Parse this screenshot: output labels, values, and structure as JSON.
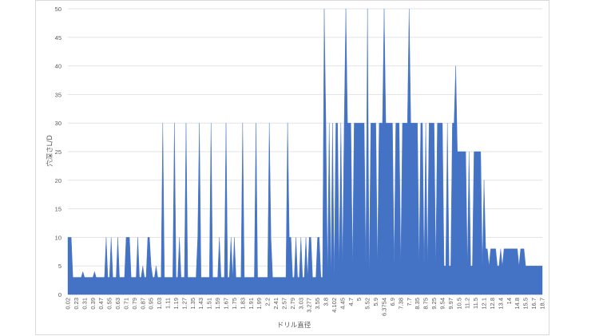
{
  "chart_data": {
    "type": "area",
    "title": "",
    "xlabel": "ドリル直径",
    "ylabel": "穴深さL/D",
    "ylim": [
      0,
      50
    ],
    "yticks": [
      0,
      5,
      10,
      15,
      20,
      25,
      30,
      35,
      40,
      45,
      50
    ],
    "grid": true,
    "legend": "none",
    "series_color": "#4472C4",
    "x_tick_labels": [
      "0.02",
      "0.23",
      "0.31",
      "0.39",
      "0.47",
      "0.55",
      "0.63",
      "0.71",
      "0.79",
      "0.87",
      "0.95",
      "1.03",
      "1.11",
      "1.19",
      "1.27",
      "1.35",
      "1.43",
      "1.51",
      "1.59",
      "1.67",
      "1.75",
      "1.83",
      "1.91",
      "1.99",
      "2.2",
      "2.41",
      "2.57",
      "2.79",
      "3.03",
      "3.277",
      "3.55",
      "3.8",
      "4.102",
      "4.45",
      "4.7",
      "5",
      "5.52",
      "5.9",
      "6.3754",
      "6.9",
      "7.38",
      "7.7",
      "8.35",
      "8.75",
      "9.25",
      "9.54",
      "9.97",
      "10.5",
      "11.2",
      "11.5",
      "12.1",
      "12.8",
      "13.4",
      "14",
      "14.8",
      "15.5",
      "16.7",
      "18.7"
    ],
    "values": [
      10,
      10,
      10,
      3,
      3,
      3,
      3,
      3,
      3,
      4,
      3,
      3,
      3,
      3,
      3,
      3,
      4,
      3,
      3,
      3,
      3,
      3,
      3,
      10,
      3,
      3,
      10,
      3,
      3,
      3,
      10,
      3,
      3,
      3,
      3,
      10,
      10,
      10,
      3,
      3,
      3,
      3,
      10,
      3,
      3,
      5,
      3,
      3,
      10,
      10,
      5,
      3,
      3,
      5,
      3,
      3,
      3,
      30,
      3,
      3,
      3,
      3,
      3,
      3,
      30,
      3,
      3,
      10,
      3,
      3,
      3,
      30,
      3,
      3,
      3,
      3,
      3,
      3,
      10,
      30,
      3,
      3,
      3,
      3,
      3,
      3,
      30,
      3,
      3,
      3,
      3,
      10,
      3,
      3,
      3,
      30,
      3,
      3,
      10,
      3,
      10,
      3,
      3,
      3,
      3,
      30,
      3,
      3,
      3,
      3,
      3,
      3,
      3,
      30,
      3,
      3,
      3,
      3,
      3,
      3,
      3,
      30,
      10,
      3,
      3,
      3,
      3,
      3,
      3,
      3,
      3,
      3,
      30,
      10,
      10,
      3,
      3,
      10,
      3,
      3,
      10,
      3,
      3,
      10,
      3,
      10,
      10,
      3,
      3,
      3,
      10,
      10,
      3,
      3,
      50,
      30,
      3,
      30,
      3,
      30,
      3,
      30,
      30,
      5,
      30,
      5,
      30,
      50,
      30,
      30,
      30,
      5,
      30,
      30,
      30,
      30,
      30,
      30,
      30,
      5,
      50,
      3,
      30,
      30,
      30,
      30,
      5,
      30,
      30,
      30,
      50,
      30,
      30,
      30,
      30,
      30,
      5,
      30,
      30,
      30,
      5,
      30,
      30,
      30,
      30,
      50,
      30,
      30,
      30,
      30,
      30,
      5,
      30,
      30,
      5,
      30,
      5,
      30,
      30,
      30,
      30,
      5,
      30,
      30,
      30,
      30,
      5,
      5,
      30,
      5,
      5,
      30,
      30,
      40,
      25,
      25,
      25,
      25,
      25,
      25,
      5,
      25,
      5,
      5,
      25,
      25,
      25,
      25,
      25,
      5,
      20,
      8,
      8,
      5,
      8,
      8,
      8,
      8,
      5,
      5,
      8,
      5,
      8,
      8,
      8,
      8,
      8,
      8,
      8,
      8,
      8,
      5,
      8,
      8,
      8,
      5,
      5,
      5,
      5,
      5,
      5,
      5,
      5,
      5,
      5,
      5
    ]
  }
}
